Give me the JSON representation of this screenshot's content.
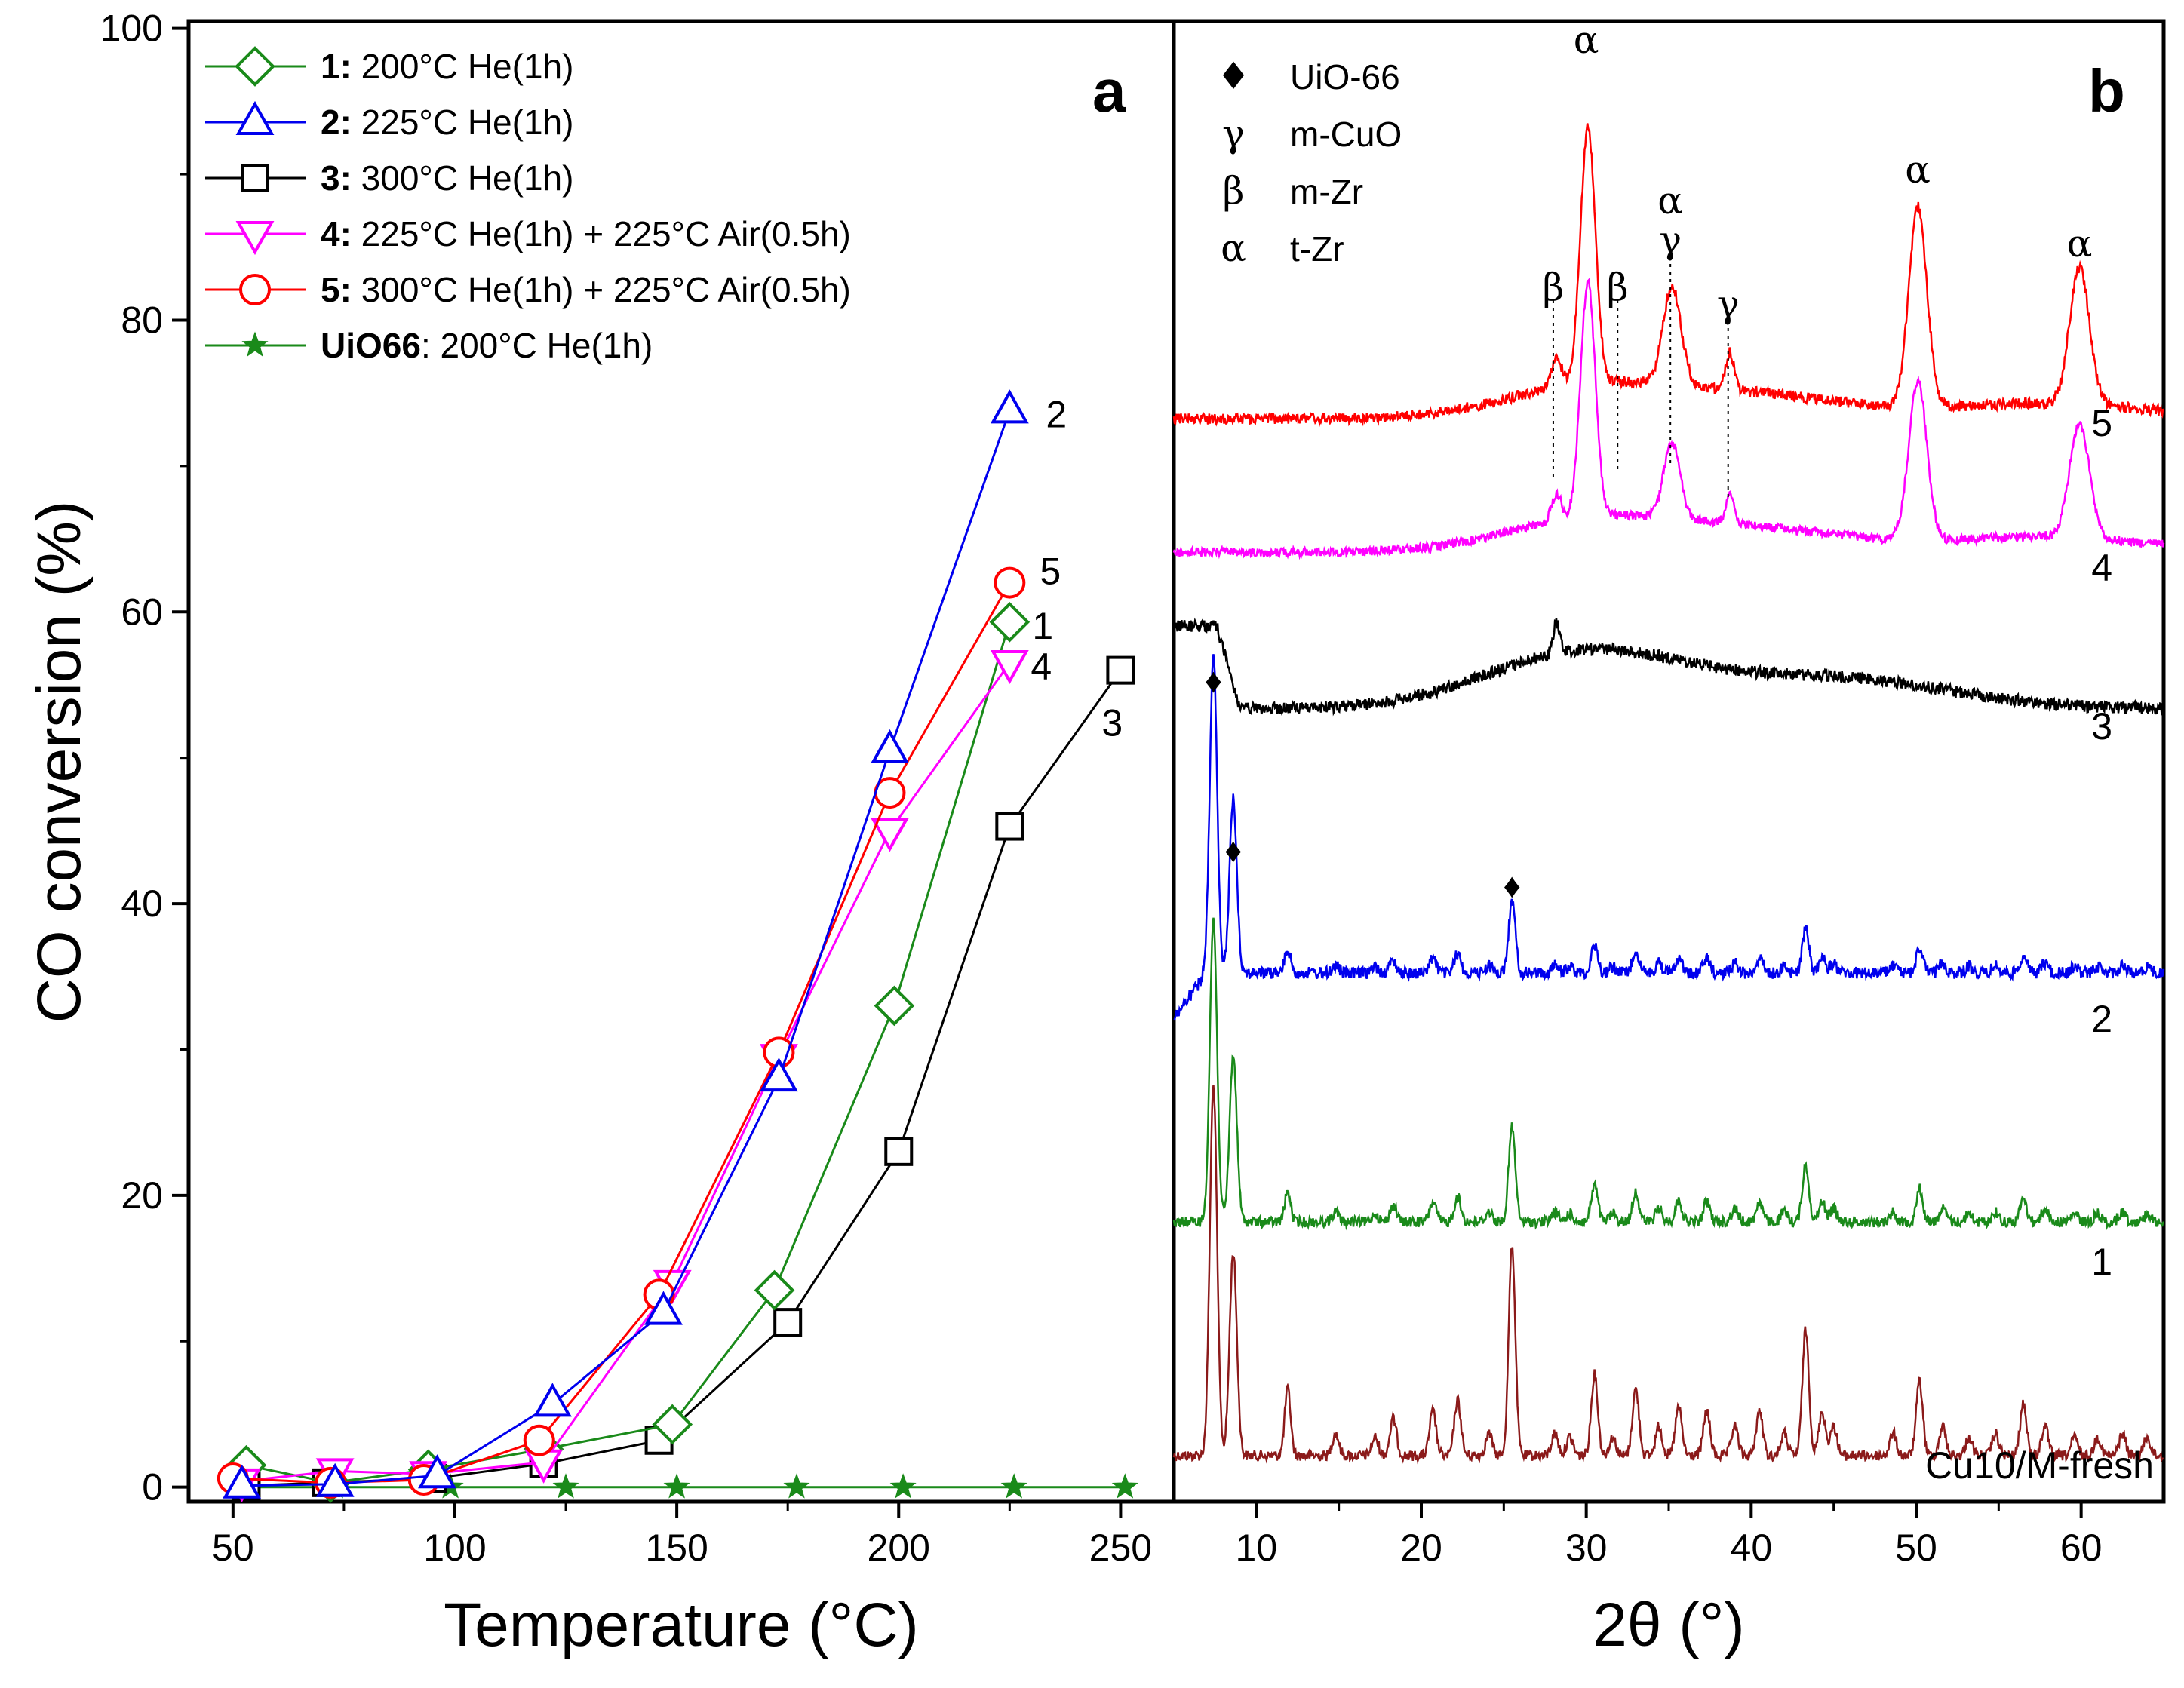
{
  "chart_data": [
    {
      "panel": "a",
      "type": "line",
      "xlabel": "Temperature (°C)",
      "ylabel": "CO conversion (%)",
      "xlim": [
        40,
        262
      ],
      "ylim": [
        -1,
        100.5
      ],
      "xticks": [
        50,
        100,
        150,
        200,
        250
      ],
      "yticks": [
        0,
        20,
        40,
        60,
        80,
        100
      ],
      "series": [
        {
          "id": "s1",
          "name": "200°C He(1h)",
          "num": "1",
          "name_bold": "1:",
          "name_rest": " 200°C He(1h)",
          "color": "#1a8a1a",
          "marker": "diamond",
          "end_label": "1",
          "x": [
            53,
            72,
            94,
            120,
            149,
            172,
            199,
            225
          ],
          "y": [
            1.5,
            0.3,
            1.2,
            2.6,
            4.3,
            13.5,
            33,
            59.3
          ]
        },
        {
          "id": "s2",
          "name": "225°C He(1h)",
          "num": "2",
          "name_bold": "2:",
          "name_rest": " 225°C He(1h)",
          "color": "#0000ee",
          "marker": "triangle-up",
          "end_label": "2",
          "x": [
            52,
            73,
            96,
            122,
            147,
            173,
            198,
            225
          ],
          "y": [
            0.1,
            0.2,
            0.8,
            5.7,
            12,
            28,
            50.5,
            73.8
          ]
        },
        {
          "id": "s3",
          "name": "300°C He(1h)",
          "num": "3",
          "name_bold": "3:",
          "name_rest": " 300°C He(1h)",
          "color": "#000000",
          "marker": "square",
          "end_label": "3",
          "x": [
            53,
            71,
            95,
            120,
            146,
            175,
            200,
            225,
            250
          ],
          "y": [
            0.1,
            0.3,
            0.6,
            1.6,
            3.2,
            11.3,
            23,
            45.3,
            56
          ]
        },
        {
          "id": "s4",
          "name": "225°C He(1h) + 225°C Air(0.5h)",
          "num": "4",
          "name_bold": "4:",
          "name_rest": " 225°C He(1h) + 225°C Air(0.5h)",
          "color": "#ff00ff",
          "marker": "triangle-down",
          "end_label": "4",
          "x": [
            52,
            73,
            94,
            120,
            149,
            173,
            198,
            225
          ],
          "y": [
            0.4,
            1.1,
            0.9,
            1.7,
            14,
            29.5,
            45,
            56.5
          ]
        },
        {
          "id": "s5",
          "name": "300°C He(1h) + 225°C Air(0.5h)",
          "num": "5",
          "name_bold": "5:",
          "name_rest": " 300°C He(1h) + 225°C Air(0.5h)",
          "color": "#ff0000",
          "marker": "circle",
          "end_label": "5",
          "x": [
            50,
            72,
            93,
            119,
            146,
            173,
            198,
            225
          ],
          "y": [
            0.6,
            0.3,
            0.5,
            3.2,
            13.2,
            29.8,
            47.6,
            62
          ]
        },
        {
          "id": "s6",
          "name": "200°C He(1h)",
          "num": "UiO66",
          "name_bold": "UiO66",
          "name_rest": ": 200°C He(1h)",
          "color": "#1a8a1a",
          "marker": "star",
          "end_label": "",
          "x": [
            50,
            73,
            99,
            125,
            150,
            177,
            201,
            226,
            251
          ],
          "y": [
            0,
            0,
            0,
            0,
            0,
            0,
            0,
            0,
            0
          ]
        }
      ]
    },
    {
      "panel": "b",
      "type": "line",
      "xlabel": "2θ (°)",
      "ylabel": "",
      "xlim": [
        5,
        65
      ],
      "xticks": [
        10,
        20,
        30,
        40,
        50,
        60
      ],
      "curve_labels": [
        "Cu10/M-fresh",
        "1",
        "2",
        "3",
        "4",
        "5"
      ],
      "legend": [
        {
          "symbol": "♦",
          "phase": "UiO-66"
        },
        {
          "symbol": "γ",
          "phase": "m-CuO"
        },
        {
          "symbol": "β",
          "phase": "m-Zr"
        },
        {
          "symbol": "α",
          "phase": "t-Zr"
        }
      ],
      "peak_annotations": [
        {
          "label": "♦",
          "x": 7.4,
          "curve": "2"
        },
        {
          "label": "♦",
          "x": 8.6,
          "curve": "2"
        },
        {
          "label": "♦",
          "x": 25.5,
          "curve": "2"
        },
        {
          "label": "β",
          "x": 28.0,
          "curve": "5"
        },
        {
          "label": "α",
          "x": 30.0,
          "curve": "5"
        },
        {
          "label": "β",
          "x": 31.9,
          "curve": "5"
        },
        {
          "label": "α",
          "x": 35.1,
          "curve": "5"
        },
        {
          "label": "γ",
          "x": 35.1,
          "curve": "5"
        },
        {
          "label": "γ",
          "x": 38.6,
          "curve": "5"
        },
        {
          "label": "α",
          "x": 50.1,
          "curve": "5"
        },
        {
          "label": "α",
          "x": 59.9,
          "curve": "5"
        }
      ],
      "traces": [
        {
          "label": "Cu10/M-fresh",
          "color": "#8b1a1a"
        },
        {
          "label": "1",
          "color": "#1a8a1a"
        },
        {
          "label": "2",
          "color": "#0000ee"
        },
        {
          "label": "3",
          "color": "#000000"
        },
        {
          "label": "4",
          "color": "#ff00ff"
        },
        {
          "label": "5",
          "color": "#ff0000"
        }
      ]
    }
  ]
}
